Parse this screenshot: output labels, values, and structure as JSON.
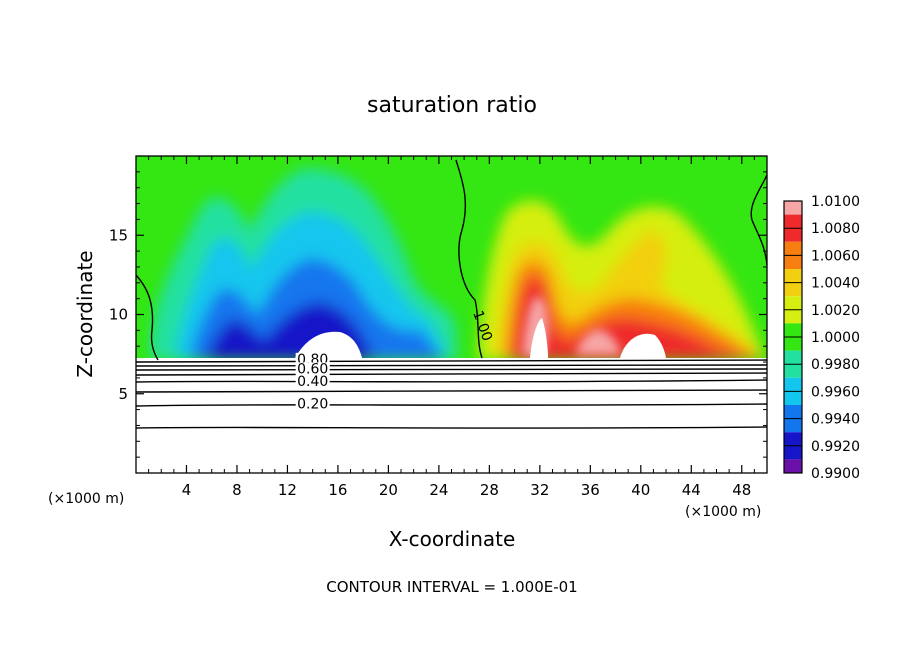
{
  "chart_data": {
    "type": "heatmap",
    "title": "saturation ratio",
    "xlabel": "X-coordinate",
    "ylabel": "Z-coordinate",
    "x_unit": "(×1000 m)",
    "z_unit": "(×1000 m)",
    "xlim": [
      0,
      50
    ],
    "ylim": [
      0,
      20
    ],
    "x_ticks": [
      4,
      8,
      12,
      16,
      20,
      24,
      28,
      32,
      36,
      40,
      44,
      48
    ],
    "y_ticks": [
      5,
      10,
      15
    ],
    "colorbar": {
      "levels": [
        "1.0100",
        "1.0080",
        "1.0060",
        "1.0040",
        "1.0020",
        "1.0000",
        "0.9980",
        "0.9960",
        "0.9940",
        "0.9920",
        "0.9900"
      ],
      "colors": [
        "#f6a6a6",
        "#ef2a2a",
        "#f77e10",
        "#f2cf10",
        "#d6ee10",
        "#34e612",
        "#22e0a0",
        "#12c6ee",
        "#1276ee",
        "#1616c8",
        "#6a10a8"
      ]
    },
    "contour_labels": [
      {
        "text": "0.80",
        "x": 14,
        "z": 7.2
      },
      {
        "text": "0.60",
        "x": 14,
        "z": 6.6
      },
      {
        "text": "0.40",
        "x": 14,
        "z": 5.8
      },
      {
        "text": "0.20",
        "x": 14,
        "z": 4.4
      },
      {
        "text": "1.00",
        "x": 27.5,
        "z": 9.3
      }
    ],
    "footer": "CONTOUR INTERVAL = 1.000E-01"
  },
  "icons": {}
}
